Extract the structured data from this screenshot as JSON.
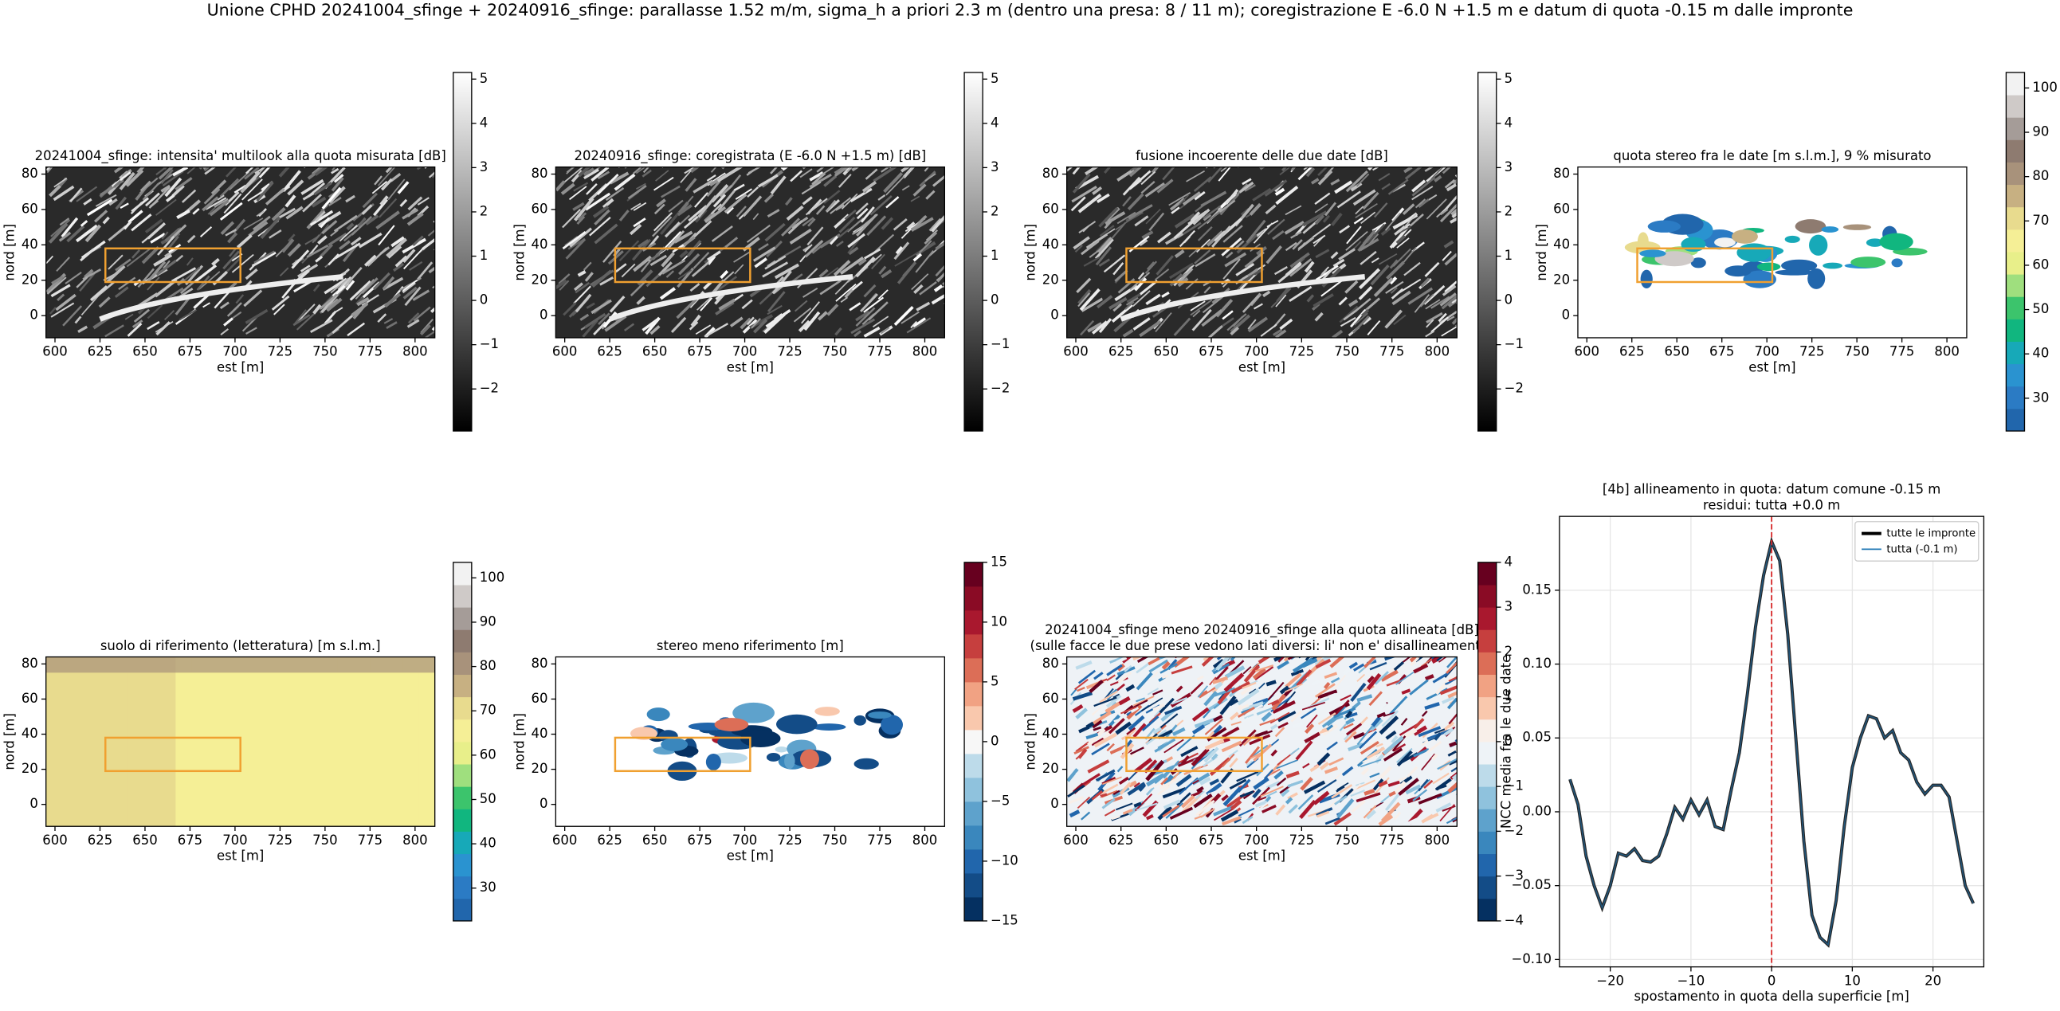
{
  "title": "Unione CPHD 20241004_sfinge + 20240916_sfinge: parallasse 1.52 m/m, sigma_h a priori 2.3 m (dentro una presa: 8 / 11 m); coregistrazione E -6.0 N +1.5 m e datum di quota -0.15 m dalle impronte",
  "chart_data": [
    {
      "type": "image",
      "title": [
        "20241004_sfinge: intensita' multilook alla quota misurata [dB]"
      ],
      "xlabel": "est [m]",
      "ylabel": "nord [m]",
      "xlim": [
        595,
        811
      ],
      "ylim": [
        -12.5,
        84
      ],
      "xticks": [
        600,
        625,
        650,
        675,
        700,
        725,
        750,
        775,
        800
      ],
      "yticks": [
        0,
        20,
        40,
        60,
        80
      ],
      "box": {
        "x": [
          628,
          703
        ],
        "y": [
          19,
          38
        ],
        "color": "#f0a030"
      },
      "colorbar": {
        "lim": [
          -2.95,
          5.15
        ],
        "ticks": [
          {
            "value": -2,
            "label": "−2"
          },
          {
            "value": -1,
            "label": "−1"
          },
          0,
          1,
          2,
          3,
          4,
          5
        ],
        "colors": [
          "#000000",
          "#ffffff"
        ],
        "discrete": false
      }
    },
    {
      "type": "image",
      "title": [
        "20240916_sfinge: coregistrata (E -6.0 N +1.5 m) [dB]"
      ],
      "xlabel": "est [m]",
      "ylabel": "nord [m]",
      "xlim": [
        595,
        811
      ],
      "ylim": [
        -12.5,
        84
      ],
      "xticks": [
        600,
        625,
        650,
        675,
        700,
        725,
        750,
        775,
        800
      ],
      "yticks": [
        0,
        20,
        40,
        60,
        80
      ],
      "box": {
        "x": [
          628,
          703
        ],
        "y": [
          19,
          38
        ],
        "color": "#f0a030"
      },
      "colorbar": {
        "lim": [
          -2.95,
          5.15
        ],
        "ticks": [
          {
            "value": -2,
            "label": "−2"
          },
          {
            "value": -1,
            "label": "−1"
          },
          0,
          1,
          2,
          3,
          4,
          5
        ],
        "colors": [
          "#000000",
          "#ffffff"
        ],
        "discrete": false
      }
    },
    {
      "type": "image",
      "title": [
        "fusione incoerente delle due date [dB]"
      ],
      "xlabel": "est [m]",
      "ylabel": "nord [m]",
      "xlim": [
        595,
        811
      ],
      "ylim": [
        -12.5,
        84
      ],
      "xticks": [
        600,
        625,
        650,
        675,
        700,
        725,
        750,
        775,
        800
      ],
      "yticks": [
        0,
        20,
        40,
        60,
        80
      ],
      "box": {
        "x": [
          628,
          703
        ],
        "y": [
          19,
          38
        ],
        "color": "#f0a030"
      },
      "colorbar": {
        "lim": [
          -2.95,
          5.15
        ],
        "ticks": [
          {
            "value": -2,
            "label": "−2"
          },
          {
            "value": -1,
            "label": "−1"
          },
          0,
          1,
          2,
          3,
          4,
          5
        ],
        "colors": [
          "#000000",
          "#ffffff"
        ],
        "discrete": false
      }
    },
    {
      "type": "image",
      "title": [
        "quota stereo fra le date [m s.l.m.], 9 % misurato"
      ],
      "xlabel": "est [m]",
      "ylabel": "nord [m]",
      "xlim": [
        595,
        811
      ],
      "ylim": [
        -12.5,
        84
      ],
      "xticks": [
        600,
        625,
        650,
        675,
        700,
        725,
        750,
        775,
        800
      ],
      "yticks": [
        0,
        20,
        40,
        60,
        80
      ],
      "box": {
        "x": [
          628,
          703
        ],
        "y": [
          19,
          38
        ],
        "color": "#f0a030"
      },
      "colorbar": {
        "lim": [
          22.6,
          103.5
        ],
        "ticks": [
          30,
          40,
          50,
          60,
          70,
          80,
          90,
          100
        ],
        "colors": [
          "#2166ac",
          "#2b7bc4",
          "#2a93d0",
          "#17a9b8",
          "#11b67f",
          "#3cc46c",
          "#9fdf7e",
          "#e8ef8a",
          "#f5ef96",
          "#e8db8e",
          "#c7b082",
          "#a8927b",
          "#8e7b70",
          "#a59c98",
          "#cfcac8",
          "#f2f2f2"
        ],
        "discrete": true
      }
    },
    {
      "type": "image",
      "title": [
        "suolo di riferimento (letteratura) [m s.l.m.]"
      ],
      "xlabel": "est [m]",
      "ylabel": "nord [m]",
      "xlim": [
        595,
        811
      ],
      "ylim": [
        -12.5,
        84
      ],
      "xticks": [
        600,
        625,
        650,
        675,
        700,
        725,
        750,
        775,
        800
      ],
      "yticks": [
        0,
        20,
        40,
        60,
        80
      ],
      "box": {
        "x": [
          628,
          703
        ],
        "y": [
          19,
          38
        ],
        "color": "#f0a030"
      },
      "colorbar": {
        "lim": [
          22.6,
          103.5
        ],
        "ticks": [
          30,
          40,
          50,
          60,
          70,
          80,
          90,
          100
        ],
        "colors": [
          "#2166ac",
          "#2b7bc4",
          "#2a93d0",
          "#17a9b8",
          "#11b67f",
          "#3cc46c",
          "#9fdf7e",
          "#e8ef8a",
          "#f5ef96",
          "#e8db8e",
          "#c7b082",
          "#a8927b",
          "#8e7b70",
          "#a59c98",
          "#cfcac8",
          "#f2f2f2"
        ],
        "discrete": true
      }
    },
    {
      "type": "image",
      "title": [
        "stereo meno riferimento [m]"
      ],
      "xlabel": "est [m]",
      "ylabel": "nord [m]",
      "xlim": [
        595,
        811
      ],
      "ylim": [
        -12.5,
        84
      ],
      "xticks": [
        600,
        625,
        650,
        675,
        700,
        725,
        750,
        775,
        800
      ],
      "yticks": [
        0,
        20,
        40,
        60,
        80
      ],
      "box": {
        "x": [
          628,
          703
        ],
        "y": [
          19,
          38
        ],
        "color": "#f0a030"
      },
      "colorbar": {
        "lim": [
          -15,
          15
        ],
        "ticks": [
          {
            "value": -15,
            "label": "−15"
          },
          {
            "value": -10,
            "label": "−10"
          },
          {
            "value": -5,
            "label": "−5"
          },
          0,
          5,
          10,
          15
        ],
        "colors": [
          "#053061",
          "#134c87",
          "#2166ac",
          "#3a87bd",
          "#5ea2cc",
          "#8fc2dd",
          "#bddbea",
          "#f7f7f7",
          "#f9c8ad",
          "#f1a283",
          "#dc6e57",
          "#c63f3e",
          "#a9182e",
          "#8a0b25",
          "#67001f"
        ],
        "discrete": true
      }
    },
    {
      "type": "image",
      "title": [
        "20241004_sfinge meno 20240916_sfinge alla quota allineata [dB]",
        "(sulle facce le due prese vedono lati diversi: li' non e' disallineamento)"
      ],
      "xlabel": "est [m]",
      "ylabel": "nord [m]",
      "xlim": [
        595,
        811
      ],
      "ylim": [
        -12.5,
        84
      ],
      "xticks": [
        600,
        625,
        650,
        675,
        700,
        725,
        750,
        775,
        800
      ],
      "yticks": [
        0,
        20,
        40,
        60,
        80
      ],
      "box": {
        "x": [
          628,
          703
        ],
        "y": [
          19,
          38
        ],
        "color": "#f0a030"
      },
      "colorbar": {
        "lim": [
          -4,
          4
        ],
        "ticks": [
          {
            "value": -4,
            "label": "−4"
          },
          {
            "value": -3,
            "label": "−3"
          },
          {
            "value": -2,
            "label": "−2"
          },
          {
            "value": -1,
            "label": "−1"
          },
          0,
          1,
          2,
          3,
          4
        ],
        "colors": [
          "#053061",
          "#134c87",
          "#2166ac",
          "#3a87bd",
          "#5ea2cc",
          "#8fc2dd",
          "#bddbea",
          "#eef3f7",
          "#f8efe9",
          "#f9c8ad",
          "#f1a283",
          "#dc6e57",
          "#c63f3e",
          "#a9182e",
          "#8a0b25",
          "#67001f"
        ],
        "discrete": true
      }
    },
    {
      "type": "line",
      "title": [
        "[4b] allineamento in quota: datum comune -0.15 m",
        "residui: tutta +0.0 m"
      ],
      "xlabel": "spostamento in quota della superficie [m]",
      "ylabel": "NCC media fra le due date",
      "xlim": [
        -26.3,
        26.3
      ],
      "ylim": [
        -0.105,
        0.2
      ],
      "xticks": [
        {
          "value": -20,
          "label": "−20"
        },
        {
          "value": -10,
          "label": "−10"
        },
        0,
        10,
        20
      ],
      "yticks": [
        {
          "value": -0.1,
          "label": "−0.10"
        },
        {
          "value": -0.05,
          "label": "−0.05"
        },
        {
          "value": 0,
          "label": "0.00"
        },
        {
          "value": 0.05,
          "label": "0.05"
        },
        {
          "value": 0.1,
          "label": "0.10"
        },
        {
          "value": 0.15,
          "label": "0.15"
        }
      ],
      "grid": true,
      "legend": "upper right",
      "vline": {
        "x": 0,
        "color": "#d62728"
      },
      "x": [
        -25,
        -24,
        -23,
        -22,
        -21,
        -20,
        -19,
        -18,
        -17,
        -16,
        -15,
        -14,
        -13,
        -12,
        -11,
        -10,
        -9,
        -8,
        -7,
        -6,
        -5,
        -4,
        -3,
        -2,
        -1,
        0,
        1,
        2,
        3,
        4,
        5,
        6,
        7,
        8,
        9,
        10,
        11,
        12,
        13,
        14,
        15,
        16,
        17,
        18,
        19,
        20,
        21,
        22,
        23,
        24,
        25
      ],
      "series": [
        {
          "name": "tutte le impronte",
          "color": "#000000",
          "values": [
            0.022,
            0.005,
            -0.03,
            -0.05,
            -0.065,
            -0.05,
            -0.028,
            -0.03,
            -0.025,
            -0.033,
            -0.034,
            -0.03,
            -0.015,
            0.003,
            -0.005,
            0.008,
            -0.002,
            0.008,
            -0.01,
            -0.012,
            0.015,
            0.04,
            0.08,
            0.125,
            0.16,
            0.183,
            0.17,
            0.12,
            0.05,
            -0.02,
            -0.07,
            -0.085,
            -0.09,
            -0.06,
            -0.01,
            0.03,
            0.05,
            0.065,
            0.063,
            0.05,
            0.055,
            0.04,
            0.035,
            0.02,
            0.012,
            0.018,
            0.018,
            0.01,
            -0.02,
            -0.05,
            -0.062
          ]
        },
        {
          "name": "tutta (-0.1 m)",
          "color": "#1f77b4",
          "values": [
            0.022,
            0.005,
            -0.03,
            -0.05,
            -0.065,
            -0.05,
            -0.028,
            -0.03,
            -0.025,
            -0.033,
            -0.034,
            -0.03,
            -0.015,
            0.003,
            -0.005,
            0.008,
            -0.002,
            0.008,
            -0.01,
            -0.012,
            0.015,
            0.04,
            0.08,
            0.125,
            0.16,
            0.183,
            0.17,
            0.12,
            0.05,
            -0.02,
            -0.07,
            -0.085,
            -0.09,
            -0.06,
            -0.01,
            0.03,
            0.05,
            0.065,
            0.063,
            0.05,
            0.055,
            0.04,
            0.035,
            0.02,
            0.012,
            0.018,
            0.018,
            0.01,
            -0.02,
            -0.05,
            -0.062
          ]
        }
      ]
    }
  ]
}
